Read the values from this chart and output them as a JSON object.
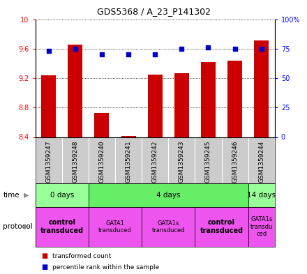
{
  "title": "GDS5368 / A_23_P141302",
  "samples": [
    "GSM1359247",
    "GSM1359248",
    "GSM1359240",
    "GSM1359241",
    "GSM1359242",
    "GSM1359243",
    "GSM1359245",
    "GSM1359246",
    "GSM1359244"
  ],
  "bar_values": [
    9.24,
    9.65,
    8.73,
    8.41,
    9.25,
    9.27,
    9.42,
    9.44,
    9.71
  ],
  "dot_values": [
    73,
    75,
    70,
    70,
    70,
    75,
    76,
    75,
    75
  ],
  "ylim_left": [
    8.4,
    10.0
  ],
  "ylim_right": [
    0,
    100
  ],
  "yticks_left": [
    8.4,
    8.8,
    9.2,
    9.6,
    10.0
  ],
  "yticks_right": [
    0,
    25,
    50,
    75,
    100
  ],
  "ytick_labels_left": [
    "8.4",
    "8.8",
    "9.2",
    "9.6",
    "10"
  ],
  "ytick_labels_right": [
    "0",
    "25",
    "50",
    "75",
    "100%"
  ],
  "bar_color": "#cc0000",
  "dot_color": "#0000cc",
  "sample_bg": "#cccccc",
  "time_groups": [
    {
      "label": "0 days",
      "start": 0,
      "end": 2,
      "color": "#99ff99"
    },
    {
      "label": "4 days",
      "start": 2,
      "end": 8,
      "color": "#66ee66"
    },
    {
      "label": "14 days",
      "start": 8,
      "end": 9,
      "color": "#99ff99"
    }
  ],
  "protocol_groups": [
    {
      "label": "control\ntransduced",
      "start": 0,
      "end": 2,
      "color": "#ee55ee",
      "bold": true
    },
    {
      "label": "GATA1\ntransduced",
      "start": 2,
      "end": 4,
      "color": "#ee55ee",
      "bold": false
    },
    {
      "label": "GATA1s\ntransduced",
      "start": 4,
      "end": 6,
      "color": "#ee55ee",
      "bold": false
    },
    {
      "label": "control\ntransduced",
      "start": 6,
      "end": 8,
      "color": "#ee55ee",
      "bold": true
    },
    {
      "label": "GATA1s\ntransdu\nced",
      "start": 8,
      "end": 9,
      "color": "#ee55ee",
      "bold": false
    }
  ],
  "legend_items": [
    {
      "label": "transformed count",
      "color": "#cc0000"
    },
    {
      "label": "percentile rank within the sample",
      "color": "#0000cc"
    }
  ]
}
